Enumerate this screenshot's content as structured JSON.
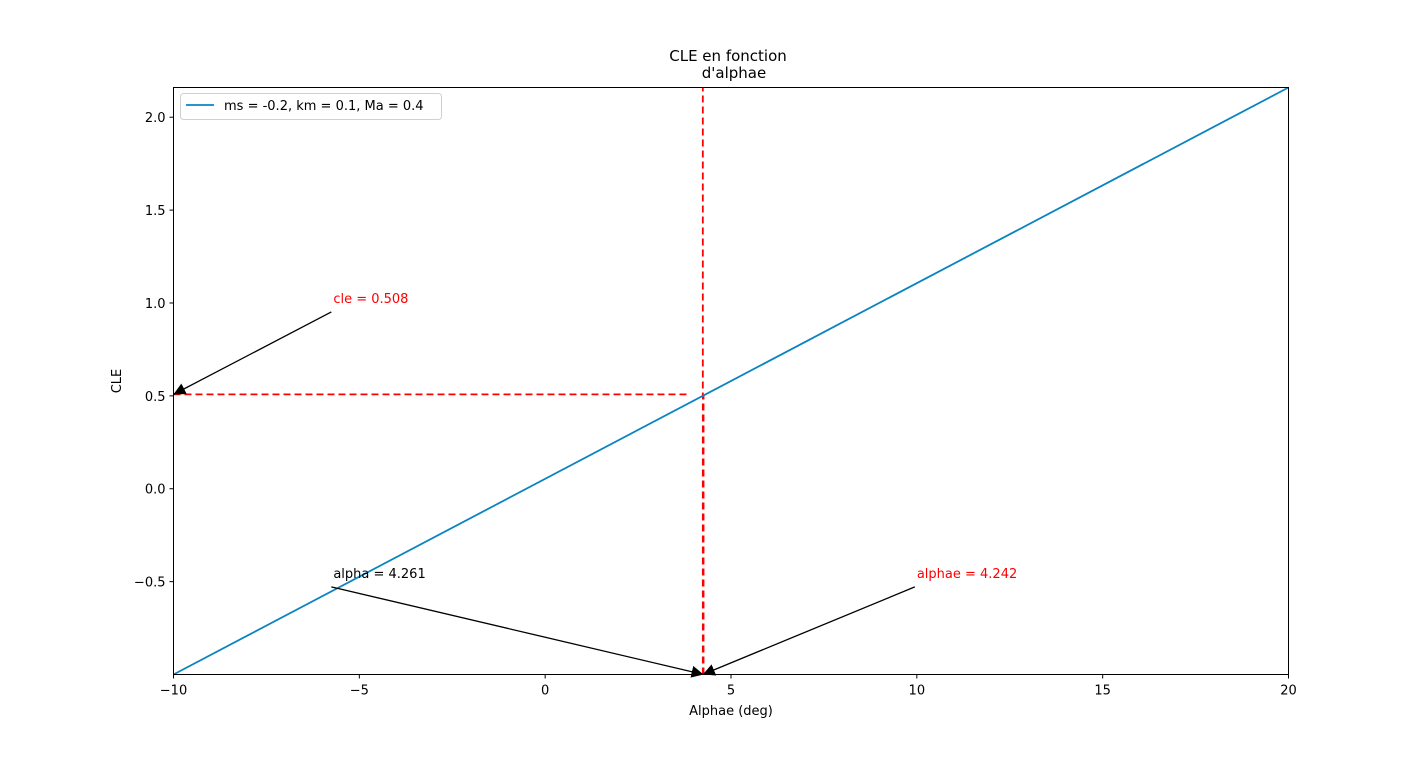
{
  "chart_data": {
    "type": "line",
    "title_lines": [
      "CLE en fonction",
      "d'alphae"
    ],
    "xlabel": "Alphae (deg)",
    "ylabel": "CLE",
    "xlim": [
      -10,
      20
    ],
    "ylim": [
      -1.0,
      2.16
    ],
    "x_ticks": [
      -10,
      -5,
      0,
      5,
      10,
      15,
      20
    ],
    "x_tick_labels": [
      "−10",
      "−5",
      "0",
      "5",
      "10",
      "15",
      "20"
    ],
    "y_ticks": [
      -0.5,
      0.0,
      0.5,
      1.0,
      1.5,
      2.0
    ],
    "y_tick_labels": [
      "−0.5",
      "0.0",
      "0.5",
      "1.0",
      "1.5",
      "2.0"
    ],
    "grid": false,
    "legend_position": "top-left",
    "series": [
      {
        "name": "ms = -0.2, km = 0.1, Ma = 0.4",
        "color": "#0a84c1",
        "x": [
          -10,
          20
        ],
        "y": [
          -1.0,
          2.16
        ]
      }
    ],
    "reference_lines": [
      {
        "orientation": "vertical",
        "x": 4.242,
        "y_range": [
          -1.0,
          2.16
        ],
        "color": "#ff0000",
        "style": "dashed"
      },
      {
        "orientation": "vertical",
        "x": 4.261,
        "y_range": [
          -1.0,
          0.508
        ],
        "color": "#ff0000",
        "style": "dashed"
      },
      {
        "orientation": "horizontal",
        "y": 0.508,
        "x_range": [
          -10,
          3.9
        ],
        "color": "#ff0000",
        "style": "dashed"
      }
    ],
    "annotations": [
      {
        "text": "cle = 0.508",
        "text_x": -5.7,
        "text_y": 1.0,
        "target_x": -10,
        "target_y": 0.508,
        "text_color": "#ff0000"
      },
      {
        "text": "alpha = 4.261",
        "text_x": -5.7,
        "text_y": -0.48,
        "target_x": 4.261,
        "target_y": -1.0,
        "text_color": "#000000"
      },
      {
        "text": "alphae = 4.242",
        "text_x": 10.0,
        "text_y": -0.48,
        "target_x": 4.242,
        "target_y": -1.0,
        "text_color": "#ff0000"
      }
    ]
  }
}
